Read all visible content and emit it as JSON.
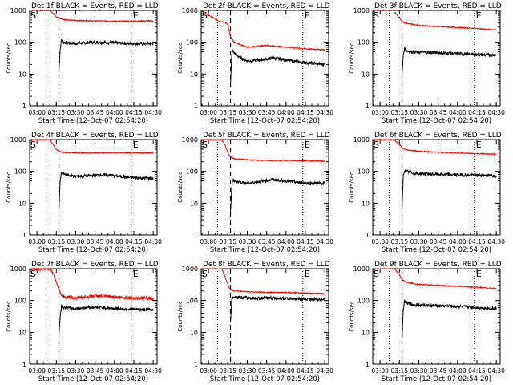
{
  "figure": {
    "xlabel": "Start Time (12-Oct-07 02:54:20)",
    "ylabel": "Counts/sec",
    "y_ticks": [
      "1",
      "10",
      "100",
      "1000"
    ],
    "x_ticks": [
      "03:00",
      "03:15",
      "03:30",
      "03:45",
      "04:00",
      "04:15",
      "04:30"
    ],
    "marker_s": "S",
    "marker_e": "E",
    "colors": {
      "events": "#000000",
      "lld": "#ff0000",
      "axes": "#000000"
    }
  },
  "chart_data": [
    {
      "type": "line",
      "title": "Det 1f BLACK = Events, RED = LLD",
      "xlabel": "Start Time (12-Oct-07 02:54:20)",
      "ylabel": "Counts/sec",
      "y_scale": "log",
      "ylim": [
        1,
        1000
      ],
      "xlim": [
        "02:54:20",
        "04:33:00"
      ],
      "x_ticks": [
        "03:00",
        "03:15",
        "03:30",
        "03:45",
        "04:00",
        "04:15",
        "04:30"
      ],
      "vlines": {
        "dotted": [
          "03:07",
          "04:13"
        ],
        "dashed": "03:17"
      },
      "series": [
        {
          "name": "Events",
          "color": "#000000",
          "x": [
            "03:17",
            "03:18",
            "03:19",
            "03:20",
            "03:25",
            "03:30",
            "03:40",
            "03:50",
            "04:00",
            "04:10",
            "04:20",
            "04:30"
          ],
          "y": [
            12,
            60,
            120,
            100,
            95,
            92,
            98,
            100,
            95,
            92,
            90,
            92
          ]
        },
        {
          "name": "LLD",
          "color": "#ff0000",
          "x": [
            "02:55",
            "03:05",
            "03:10",
            "03:12",
            "03:14",
            "03:16",
            "03:18",
            "03:20",
            "03:30",
            "03:45",
            "04:00",
            "04:15",
            "04:30"
          ],
          "y": [
            1000,
            1000,
            1000,
            850,
            700,
            600,
            560,
            520,
            480,
            470,
            460,
            460,
            470
          ]
        }
      ]
    },
    {
      "type": "line",
      "title": "Det 2f BLACK = Events, RED = LLD",
      "xlabel": "Start Time (12-Oct-07 02:54:20)",
      "ylabel": "Counts/sec",
      "y_scale": "log",
      "ylim": [
        1,
        1000
      ],
      "xlim": [
        "02:54:20",
        "04:33:00"
      ],
      "x_ticks": [
        "03:00",
        "03:15",
        "03:30",
        "03:45",
        "04:00",
        "04:15",
        "04:30"
      ],
      "vlines": {
        "dotted": [
          "03:07",
          "04:13"
        ],
        "dashed": "03:17"
      },
      "series": [
        {
          "name": "Events",
          "color": "#000000",
          "x": [
            "03:17",
            "03:18",
            "03:19",
            "03:20",
            "03:25",
            "03:30",
            "03:40",
            "03:50",
            "04:00",
            "04:10",
            "04:20",
            "04:30"
          ],
          "y": [
            4,
            40,
            55,
            45,
            32,
            26,
            28,
            32,
            28,
            24,
            22,
            20
          ]
        },
        {
          "name": "LLD",
          "color": "#ff0000",
          "x": [
            "02:55",
            "03:00",
            "03:05",
            "03:08",
            "03:10",
            "03:13",
            "03:15",
            "03:17",
            "03:20",
            "03:30",
            "03:45",
            "04:00",
            "04:15",
            "04:30"
          ],
          "y": [
            1000,
            700,
            550,
            460,
            440,
            420,
            350,
            150,
            100,
            70,
            80,
            70,
            62,
            58
          ]
        }
      ]
    },
    {
      "type": "line",
      "title": "Det 3f BLACK = Events, RED = LLD",
      "xlabel": "Start Time (12-Oct-07 02:54:20)",
      "ylabel": "Counts/sec",
      "y_scale": "log",
      "ylim": [
        1,
        1000
      ],
      "xlim": [
        "02:54:20",
        "04:33:00"
      ],
      "x_ticks": [
        "03:00",
        "03:15",
        "03:30",
        "03:45",
        "04:00",
        "04:15",
        "04:30"
      ],
      "vlines": {
        "dotted": [
          "03:07",
          "04:13"
        ],
        "dashed": "03:17"
      },
      "series": [
        {
          "name": "Events",
          "color": "#000000",
          "x": [
            "03:17",
            "03:18",
            "03:19",
            "03:20",
            "03:25",
            "03:30",
            "03:40",
            "03:50",
            "04:00",
            "04:10",
            "04:20",
            "04:30"
          ],
          "y": [
            8,
            40,
            65,
            55,
            50,
            48,
            48,
            46,
            44,
            42,
            40,
            40
          ]
        },
        {
          "name": "LLD",
          "color": "#ff0000",
          "x": [
            "02:55",
            "03:05",
            "03:10",
            "03:12",
            "03:15",
            "03:17",
            "03:20",
            "03:30",
            "03:45",
            "04:00",
            "04:15",
            "04:30"
          ],
          "y": [
            1000,
            1000,
            1000,
            800,
            600,
            450,
            400,
            340,
            310,
            290,
            270,
            240
          ]
        }
      ]
    },
    {
      "type": "line",
      "title": "Det 4f BLACK = Events, RED = LLD",
      "xlabel": "Start Time (12-Oct-07 02:54:20)",
      "ylabel": "Counts/sec",
      "y_scale": "log",
      "ylim": [
        1,
        1000
      ],
      "xlim": [
        "02:54:20",
        "04:33:00"
      ],
      "x_ticks": [
        "03:00",
        "03:15",
        "03:30",
        "03:45",
        "04:00",
        "04:15",
        "04:30"
      ],
      "vlines": {
        "dotted": [
          "03:07",
          "04:13"
        ],
        "dashed": "03:17"
      },
      "series": [
        {
          "name": "Events",
          "color": "#000000",
          "x": [
            "03:17",
            "03:18",
            "03:19",
            "03:20",
            "03:25",
            "03:30",
            "03:40",
            "03:50",
            "04:00",
            "04:10",
            "04:20",
            "04:30"
          ],
          "y": [
            6,
            50,
            90,
            85,
            75,
            70,
            72,
            78,
            72,
            65,
            62,
            60
          ]
        },
        {
          "name": "LLD",
          "color": "#ff0000",
          "x": [
            "02:55",
            "03:05",
            "03:10",
            "03:12",
            "03:14",
            "03:16",
            "03:18",
            "03:20",
            "03:30",
            "03:45",
            "04:00",
            "04:15",
            "04:30"
          ],
          "y": [
            1000,
            1000,
            1000,
            750,
            550,
            450,
            420,
            400,
            380,
            380,
            390,
            380,
            380
          ]
        }
      ]
    },
    {
      "type": "line",
      "title": "Det 5f BLACK = Events, RED = LLD",
      "xlabel": "Start Time (12-Oct-07 02:54:20)",
      "ylabel": "Counts/sec",
      "y_scale": "log",
      "ylim": [
        1,
        1000
      ],
      "xlim": [
        "02:54:20",
        "04:33:00"
      ],
      "x_ticks": [
        "03:00",
        "03:15",
        "03:30",
        "03:45",
        "04:00",
        "04:15",
        "04:30"
      ],
      "vlines": {
        "dotted": [
          "03:07",
          "04:13"
        ],
        "dashed": "03:17"
      },
      "series": [
        {
          "name": "Events",
          "color": "#000000",
          "x": [
            "03:17",
            "03:18",
            "03:19",
            "03:20",
            "03:25",
            "03:30",
            "03:40",
            "03:50",
            "04:00",
            "04:10",
            "04:20",
            "04:30"
          ],
          "y": [
            5,
            30,
            55,
            50,
            45,
            42,
            48,
            55,
            50,
            45,
            42,
            42
          ]
        },
        {
          "name": "LLD",
          "color": "#ff0000",
          "x": [
            "02:55",
            "03:05",
            "03:10",
            "03:12",
            "03:14",
            "03:16",
            "03:18",
            "03:20",
            "03:30",
            "03:45",
            "04:00",
            "04:15",
            "04:30"
          ],
          "y": [
            1000,
            1000,
            1000,
            800,
            500,
            320,
            270,
            250,
            230,
            220,
            220,
            215,
            210
          ]
        }
      ]
    },
    {
      "type": "line",
      "title": "Det 6f BLACK = Events, RED = LLD",
      "xlabel": "Start Time (12-Oct-07 02:54:20)",
      "ylabel": "Counts/sec",
      "y_scale": "log",
      "ylim": [
        1,
        1000
      ],
      "xlim": [
        "02:54:20",
        "04:33:00"
      ],
      "x_ticks": [
        "03:00",
        "03:15",
        "03:30",
        "03:45",
        "04:00",
        "04:15",
        "04:30"
      ],
      "vlines": {
        "dotted": [
          "03:07",
          "04:13"
        ],
        "dashed": "03:17"
      },
      "series": [
        {
          "name": "Events",
          "color": "#000000",
          "x": [
            "03:17",
            "03:18",
            "03:19",
            "03:20",
            "03:25",
            "03:30",
            "03:40",
            "03:50",
            "04:00",
            "04:10",
            "04:20",
            "04:30"
          ],
          "y": [
            6,
            70,
            110,
            100,
            90,
            85,
            82,
            80,
            78,
            76,
            75,
            72
          ]
        },
        {
          "name": "LLD",
          "color": "#ff0000",
          "x": [
            "02:55",
            "03:05",
            "03:10",
            "03:12",
            "03:15",
            "03:17",
            "03:20",
            "03:30",
            "03:45",
            "04:00",
            "04:15",
            "04:30"
          ],
          "y": [
            1000,
            1000,
            1000,
            900,
            700,
            550,
            480,
            430,
            400,
            380,
            360,
            350
          ]
        }
      ]
    },
    {
      "type": "line",
      "title": "Det 7f BLACK = Events, RED = LLD",
      "xlabel": "Start Time (12-Oct-07 02:54:20)",
      "ylabel": "Counts/sec",
      "y_scale": "log",
      "ylim": [
        1,
        1000
      ],
      "xlim": [
        "02:54:20",
        "04:33:00"
      ],
      "x_ticks": [
        "03:00",
        "03:15",
        "03:30",
        "03:45",
        "04:00",
        "04:15",
        "04:30"
      ],
      "vlines": {
        "dotted": [
          "03:07",
          "04:13"
        ],
        "dashed": "03:17"
      },
      "series": [
        {
          "name": "Events",
          "color": "#000000",
          "x": [
            "03:17",
            "03:18",
            "03:19",
            "03:20",
            "03:25",
            "03:30",
            "03:40",
            "03:50",
            "04:00",
            "04:10",
            "04:20",
            "04:30"
          ],
          "y": [
            8,
            30,
            70,
            60,
            58,
            55,
            62,
            60,
            56,
            54,
            52,
            52
          ]
        },
        {
          "name": "LLD",
          "color": "#ff0000",
          "x": [
            "02:55",
            "03:05",
            "03:10",
            "03:12",
            "03:14",
            "03:16",
            "03:18",
            "03:20",
            "03:30",
            "03:45",
            "04:00",
            "04:15",
            "04:30"
          ],
          "y": [
            1000,
            1000,
            1000,
            700,
            500,
            300,
            180,
            130,
            120,
            140,
            130,
            120,
            115
          ]
        }
      ]
    },
    {
      "type": "line",
      "title": "Det 8f BLACK = Events, RED = LLD",
      "xlabel": "Start Time (12-Oct-07 02:54:20)",
      "ylabel": "Counts/sec",
      "y_scale": "log",
      "ylim": [
        1,
        1000
      ],
      "xlim": [
        "02:54:20",
        "04:33:00"
      ],
      "x_ticks": [
        "03:00",
        "03:15",
        "03:30",
        "03:45",
        "04:00",
        "04:15",
        "04:30"
      ],
      "vlines": {
        "dotted": [
          "03:07",
          "04:13"
        ],
        "dashed": "03:17"
      },
      "series": [
        {
          "name": "Events",
          "color": "#000000",
          "x": [
            "03:17",
            "03:18",
            "03:19",
            "03:20",
            "03:25",
            "03:30",
            "03:40",
            "03:50",
            "04:00",
            "04:10",
            "04:20",
            "04:30"
          ],
          "y": [
            20,
            100,
            140,
            130,
            125,
            120,
            118,
            120,
            115,
            112,
            110,
            108
          ]
        },
        {
          "name": "LLD",
          "color": "#ff0000",
          "x": [
            "02:55",
            "03:05",
            "03:10",
            "03:12",
            "03:14",
            "03:16",
            "03:18",
            "03:20",
            "03:30",
            "03:45",
            "04:00",
            "04:15",
            "04:30"
          ],
          "y": [
            1000,
            1000,
            1000,
            700,
            400,
            260,
            210,
            200,
            190,
            180,
            180,
            170,
            165
          ]
        }
      ]
    },
    {
      "type": "line",
      "title": "Det 9f BLACK = Events, RED = LLD",
      "xlabel": "Start Time (12-Oct-07 02:54:20)",
      "ylabel": "Counts/sec",
      "y_scale": "log",
      "ylim": [
        1,
        1000
      ],
      "xlim": [
        "02:54:20",
        "04:33:00"
      ],
      "x_ticks": [
        "03:00",
        "03:15",
        "03:30",
        "03:45",
        "04:00",
        "04:15",
        "04:30"
      ],
      "vlines": {
        "dotted": [
          "03:07",
          "04:13"
        ],
        "dashed": "03:17"
      },
      "series": [
        {
          "name": "Events",
          "color": "#000000",
          "x": [
            "03:17",
            "03:18",
            "03:19",
            "03:20",
            "03:25",
            "03:30",
            "03:40",
            "03:50",
            "04:00",
            "04:10",
            "04:20",
            "04:30"
          ],
          "y": [
            6,
            50,
            95,
            85,
            75,
            72,
            70,
            68,
            65,
            62,
            58,
            55
          ]
        },
        {
          "name": "LLD",
          "color": "#ff0000",
          "x": [
            "02:55",
            "03:05",
            "03:10",
            "03:12",
            "03:15",
            "03:17",
            "03:20",
            "03:30",
            "03:45",
            "04:00",
            "04:15",
            "04:30"
          ],
          "y": [
            1000,
            1000,
            1000,
            900,
            650,
            450,
            380,
            320,
            300,
            280,
            260,
            240
          ]
        }
      ]
    }
  ]
}
